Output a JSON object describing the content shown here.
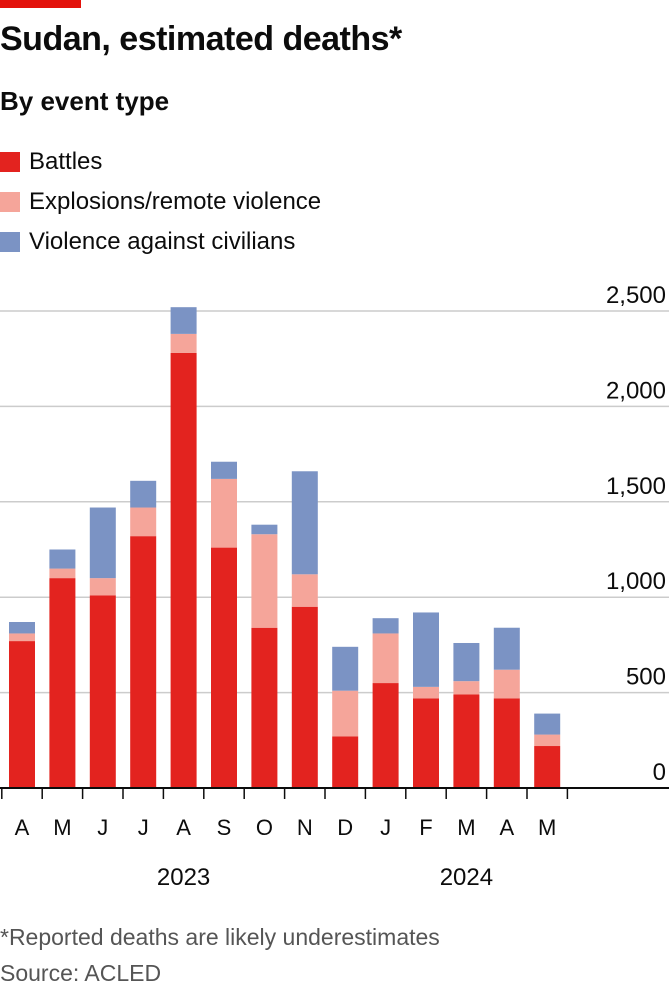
{
  "header": {
    "title": "Sudan, estimated deaths*",
    "subtitle": "By event type"
  },
  "colors": {
    "accent": "#e3120b",
    "battles": "#e3231f",
    "explosions": "#f5a59a",
    "violence": "#7b93c4",
    "gridline": "#cccccc",
    "axis": "#0c0c0c"
  },
  "footer": {
    "footnote": "*Reported deaths are likely underestimates",
    "source": "Source: ACLED"
  },
  "chart_data": {
    "type": "bar",
    "stacked": true,
    "categories": [
      "A",
      "M",
      "J",
      "J",
      "A",
      "S",
      "O",
      "N",
      "D",
      "J",
      "F",
      "M",
      "A",
      "M"
    ],
    "year_labels": [
      {
        "label": "2023",
        "start_index": 0,
        "end_index": 8
      },
      {
        "label": "2024",
        "start_index": 9,
        "end_index": 13
      }
    ],
    "series": [
      {
        "name": "Battles",
        "color": "#e3231f",
        "values": [
          770,
          1100,
          1010,
          1320,
          2280,
          1260,
          840,
          950,
          270,
          550,
          470,
          490,
          470,
          220
        ]
      },
      {
        "name": "Explosions/remote violence",
        "color": "#f5a59a",
        "values": [
          40,
          50,
          90,
          150,
          100,
          360,
          490,
          170,
          240,
          260,
          60,
          70,
          150,
          60
        ]
      },
      {
        "name": "Violence against civilians",
        "color": "#7b93c4",
        "values": [
          60,
          100,
          370,
          140,
          140,
          90,
          50,
          540,
          230,
          80,
          390,
          200,
          220,
          110
        ]
      }
    ],
    "yticks": [
      "0",
      "500",
      "1,000",
      "1,500",
      "2,000",
      "2,500"
    ],
    "ytick_values": [
      0,
      500,
      1000,
      1500,
      2000,
      2500
    ],
    "ylim": [
      0,
      2500
    ],
    "legend_position": "top-left",
    "yaxis_position": "right",
    "grid": true
  }
}
